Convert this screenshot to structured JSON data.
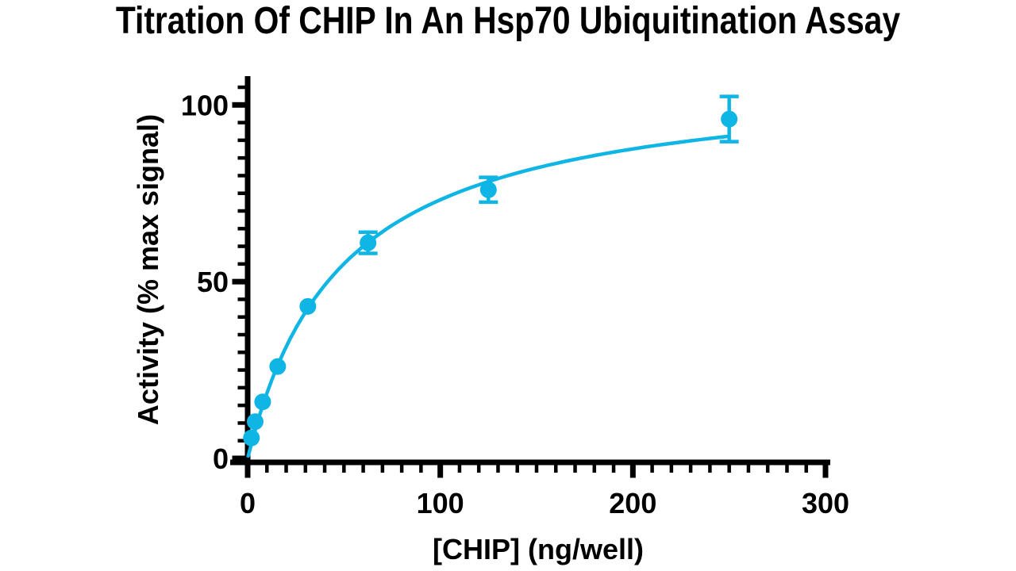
{
  "page": {
    "background_color": "#ffffff"
  },
  "chart_data": {
    "type": "scatter",
    "title": "Titration Of CHIP In An Hsp70 Ubiquitination Assay",
    "xlabel": "[CHIP] (ng/well)",
    "ylabel": "Activity (% max signal)",
    "accent_color": "#0fb5e4",
    "axis_color": "#000000",
    "grid": false,
    "legend_position": "none",
    "xlim": [
      0,
      300
    ],
    "ylim": [
      0,
      105
    ],
    "xticks": [
      0,
      100,
      200,
      300
    ],
    "yticks": [
      0,
      50,
      100
    ],
    "x_minor_step": 10,
    "y_minor_step": 5,
    "series": [
      {
        "name": "CHIP titration",
        "marker": "circle",
        "x": [
          1.95,
          3.9,
          7.8,
          15.6,
          31.25,
          62.5,
          125,
          250
        ],
        "y": [
          5.8,
          10.4,
          16,
          26,
          43,
          61,
          76,
          96
        ],
        "yerr": [
          0,
          0,
          0,
          0,
          0,
          3,
          3.5,
          6.4
        ],
        "fit_curve": {
          "model": "y = Vmax*x/(Km+x)",
          "Vmax": 109,
          "Km": 49,
          "x_range": [
            0.3,
            250
          ]
        }
      }
    ]
  }
}
